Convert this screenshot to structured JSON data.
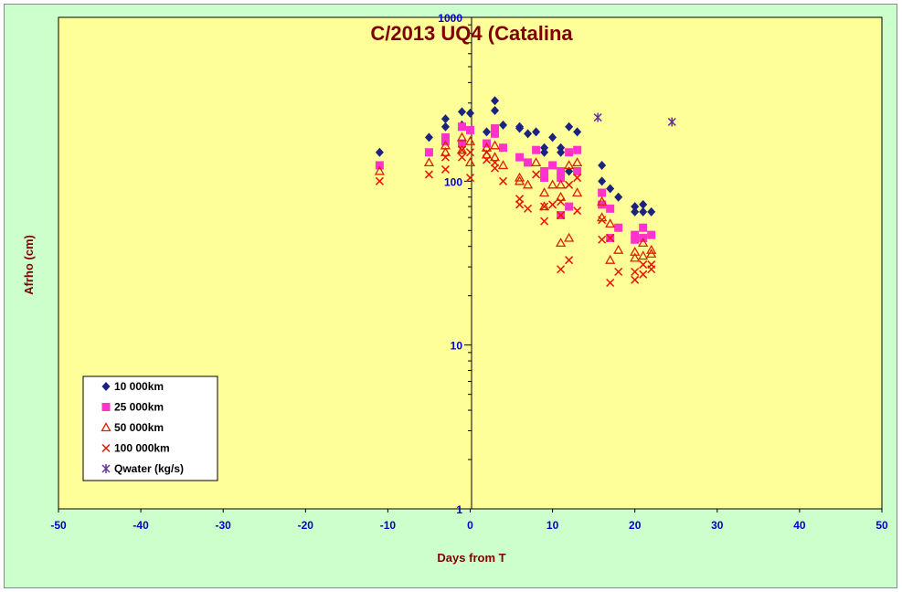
{
  "chart_data": {
    "type": "scatter",
    "title": "C/2013 UQ4 (Catalina",
    "xlabel": "Days from  T",
    "ylabel": "Afrho (cm)",
    "xlim": [
      -50,
      50
    ],
    "ylim": [
      1,
      1000
    ],
    "yscale": "log",
    "x_ticks": [
      "-50",
      "-40",
      "-30",
      "-20",
      "-10",
      "0",
      "10",
      "20",
      "30",
      "40",
      "50"
    ],
    "y_ticks": [
      "1",
      "10",
      "100",
      "1000"
    ],
    "grid": false,
    "legend_position": "bottom-left",
    "colors": {
      "plot_background": "#ffff99",
      "outer_background": "#ccffcc",
      "title": "#800000",
      "ticks": "#0000cc"
    },
    "series": [
      {
        "name": "10 000km",
        "marker": "diamond",
        "color": "#1a237e",
        "points": [
          [
            -11,
            150
          ],
          [
            -5,
            185
          ],
          [
            -3,
            240
          ],
          [
            -3,
            215
          ],
          [
            -1,
            265
          ],
          [
            -1,
            220
          ],
          [
            0,
            260
          ],
          [
            2,
            200
          ],
          [
            3,
            310
          ],
          [
            3,
            270
          ],
          [
            4,
            220
          ],
          [
            6,
            215
          ],
          [
            6,
            210
          ],
          [
            7,
            195
          ],
          [
            8,
            200
          ],
          [
            9,
            160
          ],
          [
            9,
            150
          ],
          [
            10,
            185
          ],
          [
            11,
            160
          ],
          [
            11,
            150
          ],
          [
            12,
            215
          ],
          [
            12,
            115
          ],
          [
            13,
            200
          ],
          [
            16,
            125
          ],
          [
            16,
            100
          ],
          [
            17,
            90
          ],
          [
            18,
            80
          ],
          [
            20,
            70
          ],
          [
            20,
            65
          ],
          [
            21,
            72
          ],
          [
            21,
            65
          ],
          [
            22,
            65
          ]
        ]
      },
      {
        "name": "25 000km",
        "marker": "square",
        "color": "#ff33cc",
        "points": [
          [
            -11,
            125
          ],
          [
            -5,
            150
          ],
          [
            -3,
            185
          ],
          [
            -3,
            175
          ],
          [
            -1,
            215
          ],
          [
            -1,
            170
          ],
          [
            0,
            205
          ],
          [
            2,
            170
          ],
          [
            3,
            210
          ],
          [
            3,
            195
          ],
          [
            4,
            160
          ],
          [
            6,
            140
          ],
          [
            7,
            130
          ],
          [
            8,
            155
          ],
          [
            9,
            115
          ],
          [
            9,
            105
          ],
          [
            10,
            125
          ],
          [
            11,
            115
          ],
          [
            11,
            105
          ],
          [
            11,
            62
          ],
          [
            12,
            150
          ],
          [
            12,
            70
          ],
          [
            13,
            155
          ],
          [
            13,
            115
          ],
          [
            16,
            85
          ],
          [
            16,
            72
          ],
          [
            17,
            68
          ],
          [
            17,
            45
          ],
          [
            18,
            52
          ],
          [
            20,
            47
          ],
          [
            20,
            44
          ],
          [
            21,
            52
          ],
          [
            21,
            45
          ],
          [
            22,
            47
          ]
        ]
      },
      {
        "name": "50 000km",
        "marker": "triangle",
        "color": "#dd2200",
        "points": [
          [
            -11,
            115
          ],
          [
            -5,
            130
          ],
          [
            -3,
            165
          ],
          [
            -3,
            150
          ],
          [
            -1,
            185
          ],
          [
            -1,
            155
          ],
          [
            0,
            175
          ],
          [
            0,
            130
          ],
          [
            2,
            160
          ],
          [
            2,
            145
          ],
          [
            3,
            165
          ],
          [
            3,
            140
          ],
          [
            4,
            125
          ],
          [
            6,
            105
          ],
          [
            6,
            100
          ],
          [
            7,
            95
          ],
          [
            8,
            130
          ],
          [
            9,
            85
          ],
          [
            9,
            70
          ],
          [
            10,
            95
          ],
          [
            11,
            95
          ],
          [
            11,
            80
          ],
          [
            11,
            42
          ],
          [
            12,
            125
          ],
          [
            12,
            45
          ],
          [
            13,
            130
          ],
          [
            13,
            85
          ],
          [
            16,
            75
          ],
          [
            16,
            60
          ],
          [
            17,
            55
          ],
          [
            17,
            33
          ],
          [
            18,
            38
          ],
          [
            20,
            37
          ],
          [
            20,
            34
          ],
          [
            21,
            42
          ],
          [
            21,
            35
          ],
          [
            22,
            38
          ],
          [
            22,
            36
          ]
        ]
      },
      {
        "name": "100 000km",
        "marker": "x",
        "color": "#ee1100",
        "points": [
          [
            -11,
            100
          ],
          [
            -5,
            110
          ],
          [
            -3,
            118
          ],
          [
            -3,
            140
          ],
          [
            -1,
            155
          ],
          [
            -1,
            140
          ],
          [
            0,
            150
          ],
          [
            0,
            105
          ],
          [
            2,
            150
          ],
          [
            2,
            135
          ],
          [
            3,
            130
          ],
          [
            3,
            120
          ],
          [
            4,
            100
          ],
          [
            6,
            78
          ],
          [
            6,
            72
          ],
          [
            7,
            68
          ],
          [
            8,
            110
          ],
          [
            9,
            70
          ],
          [
            9,
            57
          ],
          [
            10,
            72
          ],
          [
            11,
            75
          ],
          [
            11,
            62
          ],
          [
            11,
            29
          ],
          [
            12,
            95
          ],
          [
            12,
            33
          ],
          [
            13,
            105
          ],
          [
            13,
            66
          ],
          [
            16,
            58
          ],
          [
            16,
            44
          ],
          [
            17,
            45
          ],
          [
            17,
            24
          ],
          [
            18,
            28
          ],
          [
            20,
            28
          ],
          [
            20,
            25
          ],
          [
            21,
            31
          ],
          [
            21,
            27
          ],
          [
            22,
            31
          ],
          [
            22,
            29
          ]
        ]
      },
      {
        "name": "Qwater (kg/s)",
        "marker": "asterisk",
        "color": "#663399",
        "points": [
          [
            15.5,
            245
          ],
          [
            24.5,
            230
          ]
        ]
      }
    ]
  }
}
